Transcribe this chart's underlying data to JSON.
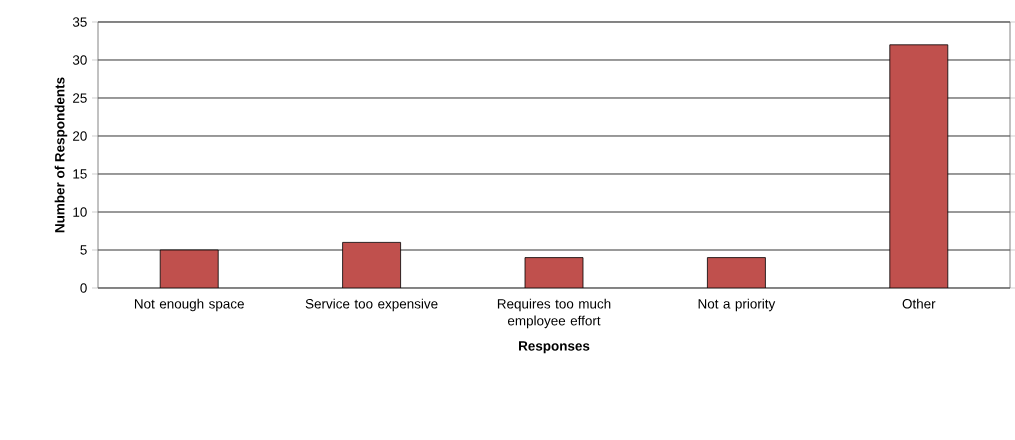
{
  "chart_data": {
    "type": "bar",
    "xlabel": "Responses",
    "ylabel": "Number of Respondents",
    "categories": [
      "Not enough space",
      "Service too expensive",
      "Requires too much employee effort",
      "Not a priority",
      "Other"
    ],
    "values": [
      5,
      6,
      4,
      4,
      32
    ],
    "color": "#c0504d",
    "ylim": [
      0,
      35
    ],
    "yticks": [
      0,
      5,
      10,
      15,
      20,
      25,
      30,
      35
    ],
    "grid": "y"
  }
}
